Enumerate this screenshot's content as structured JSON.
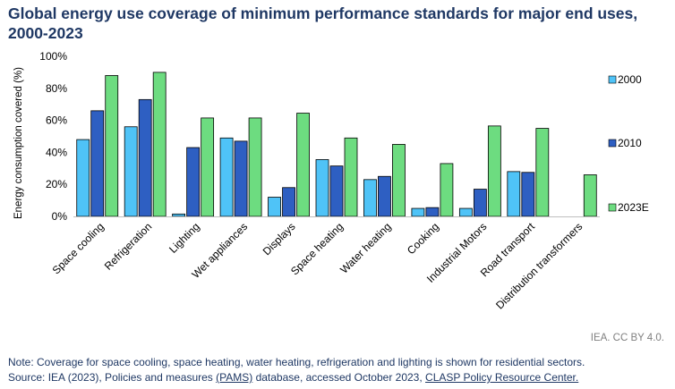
{
  "title": "Global energy use coverage of minimum performance standards for major end uses, 2000-2023",
  "attribution": "IEA. CC BY 4.0.",
  "note": {
    "line1": "Note: Coverage for space cooling, space heating, water heating, refrigeration and lighting is shown for residential sectors.",
    "source_prefix": "Source: IEA (2023), Policies and measures ",
    "source_link1": "(PAMS)",
    "source_middle": " database, accessed October 2023, ",
    "source_link2": "CLASP Policy Resource Center."
  },
  "chart_data": {
    "type": "bar",
    "title": "",
    "ylabel": "Energy consumption covered (%)",
    "ylim": [
      0,
      100
    ],
    "yticks": [
      "0%",
      "20%",
      "40%",
      "60%",
      "80%",
      "100%"
    ],
    "ytick_values": [
      0,
      20,
      40,
      60,
      80,
      100
    ],
    "grid": false,
    "legend_position": "right",
    "categories": [
      "Space cooling",
      "Refrigeration",
      "Lighting",
      "Wet appliances",
      "Displays",
      "Space heating",
      "Water heating",
      "Cooking",
      "Industrial Motors",
      "Road transport",
      "Distribution transformers"
    ],
    "series": [
      {
        "name": "2000",
        "color": "#4fc3f7",
        "values": [
          48,
          56,
          1.5,
          49,
          12,
          35.5,
          23,
          5,
          5,
          28,
          null
        ]
      },
      {
        "name": "2010",
        "color": "#2e5fc2",
        "values": [
          66,
          73,
          43,
          47,
          18,
          31.5,
          25,
          5.5,
          17,
          27.5,
          null
        ]
      },
      {
        "name": "2023E",
        "color": "#6ddc80",
        "values": [
          88,
          90,
          61.5,
          61.5,
          64.5,
          49,
          45,
          33,
          56.5,
          55,
          26
        ]
      }
    ]
  }
}
